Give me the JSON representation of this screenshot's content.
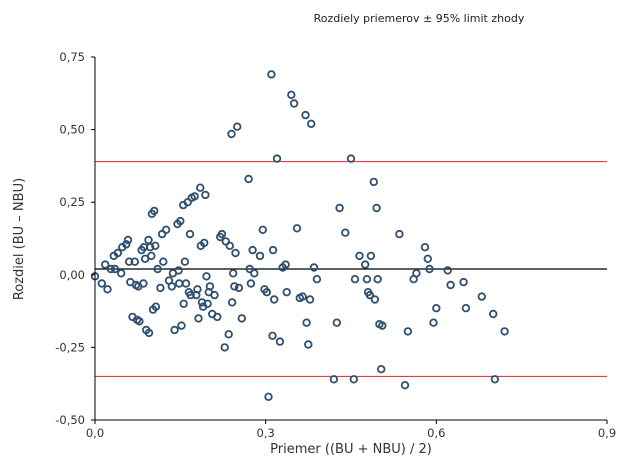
{
  "chart_data": {
    "type": "scatter",
    "title": "Rozdiely priemerov ± 95% limit zhody",
    "xlabel": "Priemer ((BU + NBU) / 2)",
    "ylabel": "Rozdiel (BU – NBU)",
    "xlim": [
      0,
      0.9
    ],
    "ylim": [
      -0.5,
      0.75
    ],
    "x_ticks": [
      "0,0",
      "0,3",
      "0,6",
      "0,9"
    ],
    "y_ticks": [
      "0,75",
      "0,50",
      "0,25",
      "0,00",
      "-0,25",
      "-0,50"
    ],
    "grid": false,
    "colors": {
      "points": "#2f4f6f",
      "limits": "#e8393e",
      "mean": "#000000"
    },
    "lines": [
      {
        "kind": "upper-limit",
        "y": 0.39
      },
      {
        "kind": "mean",
        "y": 0.02
      },
      {
        "kind": "lower-limit",
        "y": -0.35
      }
    ],
    "points": [
      [
        0.0,
        -0.005
      ],
      [
        0.012,
        -0.03
      ],
      [
        0.018,
        0.035
      ],
      [
        0.022,
        -0.05
      ],
      [
        0.028,
        0.02
      ],
      [
        0.033,
        0.065
      ],
      [
        0.035,
        0.02
      ],
      [
        0.04,
        0.075
      ],
      [
        0.046,
        0.005
      ],
      [
        0.048,
        0.095
      ],
      [
        0.055,
        0.105
      ],
      [
        0.058,
        0.12
      ],
      [
        0.06,
        0.045
      ],
      [
        0.062,
        -0.025
      ],
      [
        0.066,
        -0.145
      ],
      [
        0.07,
        0.045
      ],
      [
        0.072,
        -0.035
      ],
      [
        0.074,
        -0.155
      ],
      [
        0.076,
        -0.04
      ],
      [
        0.078,
        -0.16
      ],
      [
        0.082,
        0.085
      ],
      [
        0.085,
        -0.03
      ],
      [
        0.086,
        0.095
      ],
      [
        0.088,
        0.055
      ],
      [
        0.09,
        -0.19
      ],
      [
        0.094,
        0.12
      ],
      [
        0.095,
        -0.2
      ],
      [
        0.097,
        0.095
      ],
      [
        0.099,
        0.065
      ],
      [
        0.1,
        0.21
      ],
      [
        0.102,
        -0.12
      ],
      [
        0.104,
        0.22
      ],
      [
        0.106,
        0.1
      ],
      [
        0.107,
        -0.11
      ],
      [
        0.11,
        0.02
      ],
      [
        0.115,
        -0.045
      ],
      [
        0.118,
        0.14
      ],
      [
        0.12,
        0.045
      ],
      [
        0.125,
        0.155
      ],
      [
        0.13,
        -0.02
      ],
      [
        0.135,
        -0.04
      ],
      [
        0.137,
        0.005
      ],
      [
        0.14,
        -0.19
      ],
      [
        0.145,
        0.175
      ],
      [
        0.147,
        0.015
      ],
      [
        0.148,
        -0.03
      ],
      [
        0.15,
        0.185
      ],
      [
        0.152,
        -0.175
      ],
      [
        0.155,
        0.24
      ],
      [
        0.156,
        -0.1
      ],
      [
        0.158,
        0.045
      ],
      [
        0.16,
        -0.03
      ],
      [
        0.163,
        0.25
      ],
      [
        0.165,
        -0.06
      ],
      [
        0.167,
        0.14
      ],
      [
        0.168,
        -0.07
      ],
      [
        0.17,
        0.265
      ],
      [
        0.175,
        0.27
      ],
      [
        0.178,
        -0.07
      ],
      [
        0.18,
        -0.05
      ],
      [
        0.182,
        -0.15
      ],
      [
        0.185,
        0.3
      ],
      [
        0.186,
        0.1
      ],
      [
        0.188,
        -0.095
      ],
      [
        0.19,
        -0.11
      ],
      [
        0.192,
        0.11
      ],
      [
        0.194,
        0.275
      ],
      [
        0.196,
        -0.005
      ],
      [
        0.198,
        -0.1
      ],
      [
        0.2,
        -0.06
      ],
      [
        0.202,
        -0.04
      ],
      [
        0.206,
        -0.135
      ],
      [
        0.21,
        -0.07
      ],
      [
        0.215,
        -0.145
      ],
      [
        0.22,
        0.13
      ],
      [
        0.223,
        0.14
      ],
      [
        0.228,
        -0.25
      ],
      [
        0.23,
        0.115
      ],
      [
        0.235,
        -0.205
      ],
      [
        0.237,
        0.1
      ],
      [
        0.24,
        0.485
      ],
      [
        0.241,
        -0.095
      ],
      [
        0.243,
        0.005
      ],
      [
        0.245,
        -0.04
      ],
      [
        0.247,
        0.075
      ],
      [
        0.25,
        0.51
      ],
      [
        0.253,
        -0.045
      ],
      [
        0.258,
        -0.15
      ],
      [
        0.27,
        0.33
      ],
      [
        0.272,
        0.02
      ],
      [
        0.274,
        -0.03
      ],
      [
        0.277,
        0.085
      ],
      [
        0.28,
        0.005
      ],
      [
        0.29,
        0.065
      ],
      [
        0.295,
        0.155
      ],
      [
        0.298,
        -0.05
      ],
      [
        0.302,
        -0.06
      ],
      [
        0.305,
        -0.42
      ],
      [
        0.31,
        0.69
      ],
      [
        0.312,
        -0.21
      ],
      [
        0.313,
        0.085
      ],
      [
        0.315,
        -0.085
      ],
      [
        0.32,
        0.4
      ],
      [
        0.325,
        -0.23
      ],
      [
        0.33,
        0.025
      ],
      [
        0.335,
        0.035
      ],
      [
        0.337,
        -0.06
      ],
      [
        0.345,
        0.62
      ],
      [
        0.35,
        0.59
      ],
      [
        0.355,
        0.16
      ],
      [
        0.36,
        -0.08
      ],
      [
        0.365,
        -0.075
      ],
      [
        0.37,
        0.55
      ],
      [
        0.372,
        -0.165
      ],
      [
        0.375,
        -0.24
      ],
      [
        0.378,
        -0.085
      ],
      [
        0.38,
        0.52
      ],
      [
        0.385,
        0.025
      ],
      [
        0.39,
        -0.015
      ],
      [
        0.42,
        -0.36
      ],
      [
        0.425,
        -0.165
      ],
      [
        0.43,
        0.23
      ],
      [
        0.44,
        0.145
      ],
      [
        0.45,
        0.4
      ],
      [
        0.455,
        -0.36
      ],
      [
        0.457,
        -0.015
      ],
      [
        0.465,
        0.065
      ],
      [
        0.475,
        0.035
      ],
      [
        0.478,
        -0.015
      ],
      [
        0.48,
        -0.06
      ],
      [
        0.483,
        -0.07
      ],
      [
        0.485,
        0.065
      ],
      [
        0.49,
        0.32
      ],
      [
        0.492,
        -0.085
      ],
      [
        0.495,
        0.23
      ],
      [
        0.497,
        -0.015
      ],
      [
        0.5,
        -0.17
      ],
      [
        0.503,
        -0.325
      ],
      [
        0.505,
        -0.175
      ],
      [
        0.535,
        0.14
      ],
      [
        0.545,
        -0.38
      ],
      [
        0.55,
        -0.195
      ],
      [
        0.56,
        -0.015
      ],
      [
        0.565,
        0.005
      ],
      [
        0.58,
        0.095
      ],
      [
        0.585,
        0.055
      ],
      [
        0.588,
        0.02
      ],
      [
        0.595,
        -0.165
      ],
      [
        0.6,
        -0.115
      ],
      [
        0.62,
        0.015
      ],
      [
        0.625,
        -0.035
      ],
      [
        0.648,
        -0.025
      ],
      [
        0.652,
        -0.115
      ],
      [
        0.68,
        -0.075
      ],
      [
        0.7,
        -0.135
      ],
      [
        0.703,
        -0.36
      ],
      [
        0.72,
        -0.195
      ]
    ]
  }
}
